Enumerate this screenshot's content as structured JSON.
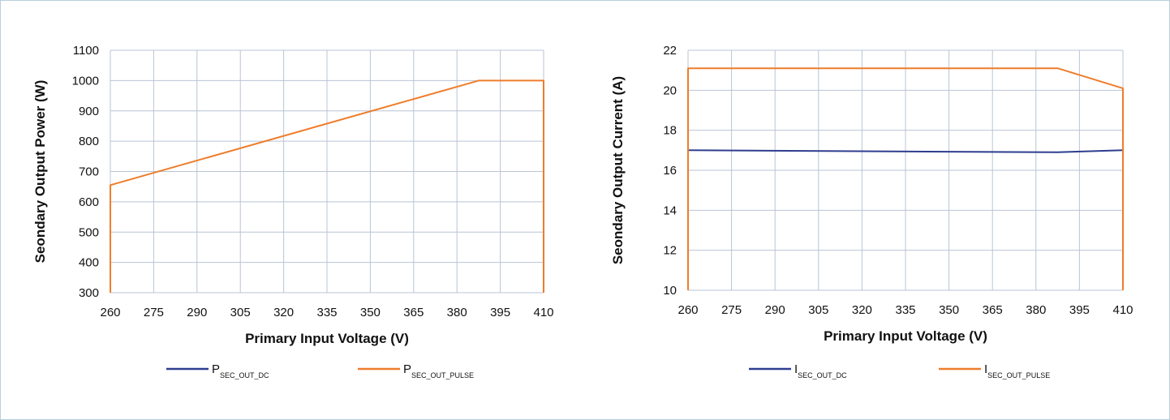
{
  "chart_data": [
    {
      "type": "line",
      "title": "",
      "xlabel": "Primary Input Voltage (V)",
      "ylabel": "Seondary Output Power (W)",
      "xlim": [
        260,
        410
      ],
      "ylim": [
        300,
        1100
      ],
      "x_ticks": [
        "260",
        "275",
        "290",
        "305",
        "320",
        "335",
        "350",
        "365",
        "380",
        "395",
        "410"
      ],
      "y_ticks": [
        "300",
        "400",
        "500",
        "600",
        "700",
        "800",
        "900",
        "1000",
        "1100"
      ],
      "grid": true,
      "legend_position": "bottom",
      "series": [
        {
          "name": "P",
          "name_sub": "SEC_OUT_DC",
          "color": "#2e3d8f",
          "points": []
        },
        {
          "name": "P",
          "name_sub": "SEC_OUT_PULSE",
          "color": "#ee7d2b",
          "points": [
            [
              260,
              300
            ],
            [
              260,
              655
            ],
            [
              387.5,
              1000
            ],
            [
              410,
              1000
            ],
            [
              410,
              300
            ]
          ]
        }
      ]
    },
    {
      "type": "line",
      "title": "",
      "xlabel": "Primary Input Voltage (V)",
      "ylabel": "Seondary Output Current (A)",
      "xlim": [
        260,
        410
      ],
      "ylim": [
        10,
        22
      ],
      "x_ticks": [
        "260",
        "275",
        "290",
        "305",
        "320",
        "335",
        "350",
        "365",
        "380",
        "395",
        "410"
      ],
      "y_ticks": [
        "10",
        "12",
        "14",
        "16",
        "18",
        "20",
        "22"
      ],
      "grid": true,
      "legend_position": "bottom",
      "series": [
        {
          "name": "I",
          "name_sub": "SEC_OUT_DC",
          "color": "#2e3d8f",
          "points": [
            [
              260,
              17
            ],
            [
              300,
              16.97
            ],
            [
              350,
              16.93
            ],
            [
              387.5,
              16.9
            ],
            [
              410,
              17
            ]
          ]
        },
        {
          "name": "I",
          "name_sub": "SEC_OUT_PULSE",
          "color": "#ee7d2b",
          "points": [
            [
              260,
              10
            ],
            [
              260,
              21.1
            ],
            [
              387.5,
              21.1
            ],
            [
              410,
              20.1
            ],
            [
              410,
              10
            ]
          ]
        }
      ]
    }
  ]
}
